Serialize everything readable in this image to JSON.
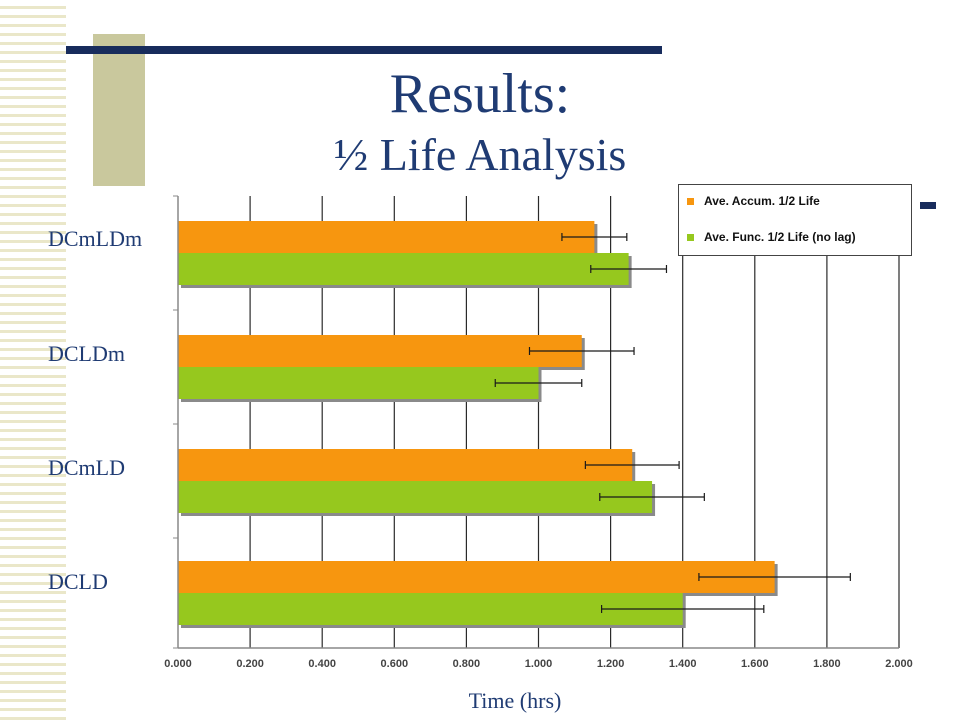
{
  "slide": {
    "title": "Results:",
    "subtitle": "½ Life Analysis"
  },
  "colors": {
    "accumulation": "#f7960f",
    "function": "#96c81e",
    "title_text": "#1f3b73",
    "accent_bar": "#182c5c",
    "accent_block": "#c9c89d"
  },
  "chart_data": {
    "type": "bar",
    "orientation": "horizontal",
    "categories": [
      "DCmLDm",
      "DCLDm",
      "DCmLD",
      "DCLD"
    ],
    "series": [
      {
        "name": "Ave. Accum. 1/2 Life",
        "values": [
          1.155,
          1.12,
          1.26,
          1.655
        ],
        "errors": [
          0.09,
          0.145,
          0.13,
          0.21
        ]
      },
      {
        "name": "Ave. Func. 1/2 Life (no lag)",
        "values": [
          1.25,
          1.0,
          1.315,
          1.4
        ],
        "errors": [
          0.105,
          0.12,
          0.145,
          0.225
        ]
      }
    ],
    "xlabel": "Time (hrs)",
    "xlim": [
      0,
      2.0
    ],
    "xticks": [
      "0.000",
      "0.200",
      "0.400",
      "0.600",
      "0.800",
      "1.000",
      "1.200",
      "1.400",
      "1.600",
      "1.800",
      "2.000"
    ],
    "grid": "vertical",
    "legend_position": "top-right"
  }
}
